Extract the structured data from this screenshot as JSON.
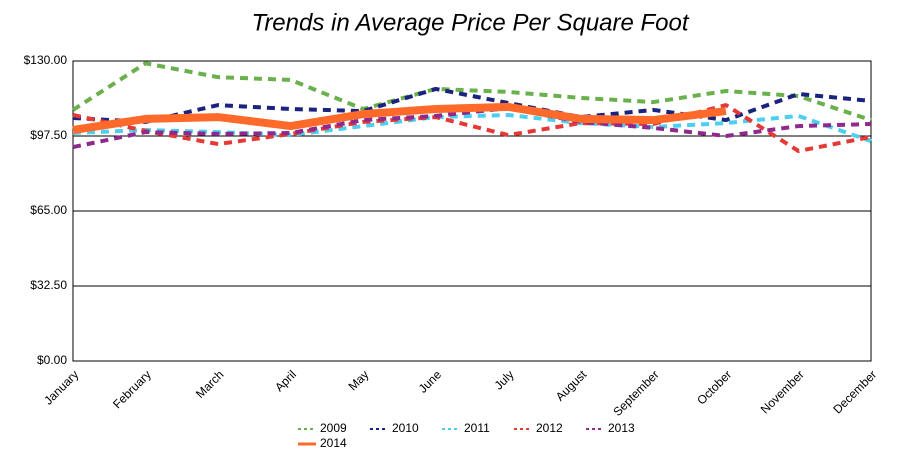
{
  "chart_data": {
    "type": "line",
    "title": "Trends in Average Price Per Square Foot",
    "categories": [
      "January",
      "February",
      "March",
      "April",
      "May",
      "June",
      "July",
      "August",
      "September",
      "October",
      "November",
      "December"
    ],
    "series": [
      {
        "name": "2009",
        "color": "#6ab04c",
        "style": "dashed",
        "values": [
          108.8,
          129,
          123,
          121.8,
          109.2,
          117.9,
          116.6,
          114,
          112.2,
          117,
          114.8,
          104.4
        ]
      },
      {
        "name": "2010",
        "color": "#1a237e",
        "style": "dashed",
        "values": [
          105.3,
          103.6,
          110.9,
          109.2,
          108.3,
          117.9,
          111.8,
          105.7,
          108.8,
          104.4,
          115.7,
          112.7
        ]
      },
      {
        "name": "2011",
        "color": "#4dd0f0",
        "style": "dashed",
        "values": [
          98.8,
          100.1,
          99.2,
          97.9,
          101.8,
          105.7,
          106.6,
          103.1,
          101.4,
          103.1,
          106.2,
          95.3
        ]
      },
      {
        "name": "2012",
        "color": "#e53935",
        "style": "dashed",
        "values": [
          106.6,
          99.7,
          94,
          98.4,
          103.6,
          105.7,
          97.9,
          103.1,
          102.7,
          110.9,
          91,
          97.1
        ]
      },
      {
        "name": "2013",
        "color": "#8e2a8e",
        "style": "dashed",
        "values": [
          92.7,
          99.2,
          98.4,
          98.8,
          104.4,
          106.2,
          109.6,
          103.6,
          101,
          97.5,
          101.8,
          102.7
        ]
      },
      {
        "name": "2014",
        "color": "#ff6a2b",
        "style": "solid",
        "values": [
          100.1,
          104.9,
          105.7,
          101.8,
          107,
          109.2,
          110.1,
          104.9,
          104.4,
          108.3,
          null,
          null
        ]
      }
    ],
    "ylim": [
      0,
      130
    ],
    "yticks": [
      {
        "value": 0,
        "label": "$0.00"
      },
      {
        "value": 32.5,
        "label": "$32.50"
      },
      {
        "value": 65,
        "label": "$65.00"
      },
      {
        "value": 97.5,
        "label": "$97.50"
      },
      {
        "value": 130,
        "label": "$130.00"
      }
    ],
    "grid": true,
    "legend": "bottom"
  }
}
